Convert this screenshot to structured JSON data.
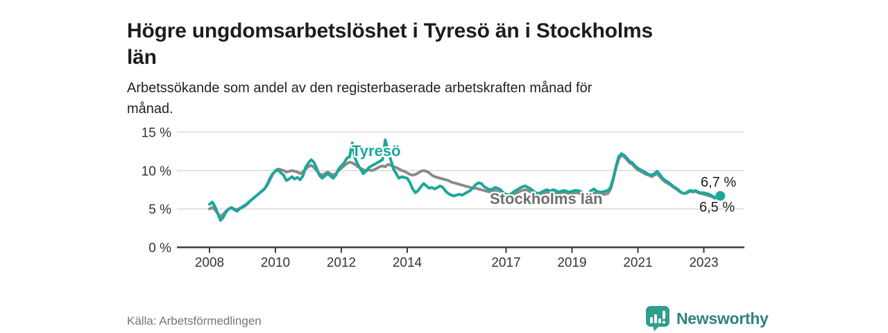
{
  "header": {
    "title": "Högre ungdomsarbetslöshet i Tyresö än i Stockholms\nlän",
    "subtitle": "Arbetssökande som andel av den registerbaserade arbetskraften månad för\nmånad."
  },
  "footer": {
    "source": "Källa: Arbetsförmedlingen",
    "brand_name": "Newsworthy"
  },
  "colors": {
    "tyreso": "#1ca79b",
    "stockholm": "#8a8a8a",
    "grid": "#dcdcdc",
    "axis": "#3a3a3a",
    "tick_text": "#333333",
    "brand_icon": "#2f9e8f",
    "brand_text": "#2e837d"
  },
  "chart_data": {
    "type": "line",
    "title": "Högre ungdomsarbetslöshet i Tyresö än i Stockholms län",
    "xlabel": "",
    "ylabel": "%",
    "ylim": [
      0,
      15
    ],
    "xlim": [
      2008,
      2023.5
    ],
    "grid": "horizontal",
    "legend_position": "inline-labels",
    "y_ticks": [
      {
        "v": 0,
        "label": "0 %"
      },
      {
        "v": 5,
        "label": "5 %"
      },
      {
        "v": 10,
        "label": "10 %"
      },
      {
        "v": 15,
        "label": "15 %"
      }
    ],
    "x_ticks": [
      {
        "v": 2008,
        "label": "2008"
      },
      {
        "v": 2010,
        "label": "2010"
      },
      {
        "v": 2012,
        "label": "2012"
      },
      {
        "v": 2014,
        "label": "2014"
      },
      {
        "v": 2017,
        "label": "2017"
      },
      {
        "v": 2019,
        "label": "2019"
      },
      {
        "v": 2021,
        "label": "2021"
      },
      {
        "v": 2023,
        "label": "2023"
      }
    ],
    "series": [
      {
        "name": "Stockholms län",
        "color_key": "stockholm",
        "end_label": "6,5 %",
        "end_dot": false,
        "start_year": 2008,
        "interval_months": 1,
        "values": [
          5.0,
          5.2,
          4.9,
          4.4,
          4.0,
          4.3,
          4.7,
          5.0,
          5.1,
          5.0,
          4.9,
          5.1,
          5.2,
          5.4,
          5.7,
          6.1,
          6.4,
          6.7,
          7.0,
          7.3,
          7.6,
          8.1,
          8.8,
          9.5,
          10.0,
          10.2,
          10.1,
          10.0,
          9.8,
          9.9,
          10.0,
          9.9,
          9.8,
          9.6,
          9.8,
          10.2,
          10.5,
          10.7,
          10.4,
          10.0,
          9.6,
          9.4,
          9.6,
          9.8,
          9.6,
          9.4,
          9.6,
          10.0,
          10.3,
          10.6,
          10.9,
          11.1,
          11.0,
          10.8,
          10.5,
          10.3,
          10.1,
          10.0,
          10.1,
          10.0,
          10.1,
          10.3,
          10.5,
          10.6,
          10.5,
          10.8,
          10.7,
          10.5,
          10.4,
          10.2,
          10.0,
          9.9,
          9.7,
          9.5,
          9.4,
          9.5,
          9.7,
          9.9,
          10.0,
          9.9,
          9.7,
          9.4,
          9.2,
          9.1,
          9.0,
          8.9,
          8.8,
          8.7,
          8.5,
          8.4,
          8.3,
          8.2,
          8.1,
          8.0,
          7.9,
          7.8,
          7.7,
          7.7,
          7.6,
          7.5,
          7.4,
          7.3,
          7.2,
          7.3,
          7.4,
          7.3,
          7.1,
          6.9,
          6.7,
          6.6,
          6.7,
          6.9,
          7.1,
          7.3,
          7.4,
          7.5,
          7.4,
          7.2,
          7.0,
          6.9,
          6.8,
          6.9,
          7.1,
          7.2,
          7.1,
          7.2,
          7.1,
          7.0,
          7.1,
          7.2,
          7.1,
          7.0,
          7.0,
          7.1,
          7.1,
          7.0,
          6.9,
          6.8,
          6.9,
          7.0,
          7.1,
          6.9,
          6.8,
          6.9,
          6.9,
          7.0,
          7.5,
          8.8,
          10.3,
          11.5,
          12.0,
          11.8,
          11.4,
          11.0,
          10.8,
          10.4,
          10.1,
          9.9,
          9.7,
          9.5,
          9.4,
          9.2,
          9.4,
          9.6,
          9.2,
          8.8,
          8.5,
          8.3,
          8.1,
          7.8,
          7.6,
          7.3,
          7.1,
          7.0,
          7.1,
          7.3,
          7.2,
          7.3,
          7.1,
          7.0,
          6.9,
          6.8,
          6.7,
          6.6,
          6.4,
          6.5,
          6.5
        ]
      },
      {
        "name": "Tyresö",
        "color_key": "tyreso",
        "end_label": "6,7 %",
        "end_dot": true,
        "start_year": 2008,
        "interval_months": 1,
        "values": [
          5.6,
          5.9,
          5.3,
          4.4,
          3.5,
          3.9,
          4.6,
          5.0,
          5.2,
          4.9,
          4.7,
          5.0,
          5.3,
          5.5,
          5.8,
          6.1,
          6.4,
          6.7,
          7.0,
          7.3,
          7.6,
          8.2,
          9.0,
          9.6,
          9.9,
          10.1,
          9.7,
          9.4,
          8.7,
          8.9,
          9.2,
          8.9,
          9.1,
          8.8,
          9.3,
          10.4,
          11.0,
          11.4,
          11.1,
          10.3,
          9.4,
          9.0,
          9.3,
          9.6,
          9.3,
          9.0,
          9.4,
          10.2,
          10.6,
          11.0,
          11.6,
          11.8,
          13.6,
          11.6,
          10.8,
          10.2,
          9.6,
          9.9,
          10.4,
          10.6,
          10.8,
          11.0,
          11.2,
          11.4,
          14.0,
          12.6,
          11.4,
          10.2,
          9.6,
          9.0,
          9.2,
          9.1,
          9.0,
          8.4,
          7.6,
          7.1,
          7.4,
          7.9,
          8.3,
          8.0,
          7.7,
          7.8,
          7.6,
          7.8,
          8.0,
          7.8,
          7.3,
          7.0,
          6.8,
          6.7,
          6.8,
          6.9,
          6.8,
          7.0,
          7.2,
          7.4,
          7.8,
          8.2,
          8.4,
          8.3,
          7.9,
          7.7,
          7.5,
          7.6,
          7.8,
          7.7,
          7.5,
          7.1,
          6.9,
          6.8,
          7.0,
          7.3,
          7.5,
          7.7,
          7.9,
          8.0,
          7.8,
          7.6,
          7.3,
          7.1,
          7.0,
          7.2,
          7.4,
          7.5,
          7.3,
          7.5,
          7.4,
          7.2,
          7.3,
          7.4,
          7.3,
          7.2,
          7.3,
          7.4,
          7.4,
          7.3,
          7.1,
          6.9,
          7.0,
          7.4,
          7.6,
          7.3,
          7.2,
          7.2,
          7.3,
          7.4,
          7.8,
          9.0,
          10.5,
          11.8,
          12.2,
          12.0,
          11.6,
          11.2,
          11.0,
          10.6,
          10.3,
          10.1,
          9.9,
          9.7,
          9.5,
          9.4,
          9.6,
          9.9,
          9.5,
          9.0,
          8.7,
          8.5,
          8.2,
          7.9,
          7.7,
          7.4,
          7.1,
          7.0,
          7.2,
          7.4,
          7.3,
          7.4,
          7.2,
          7.1,
          7.1,
          7.0,
          6.9,
          6.7,
          6.5,
          6.6,
          6.7
        ]
      }
    ]
  }
}
